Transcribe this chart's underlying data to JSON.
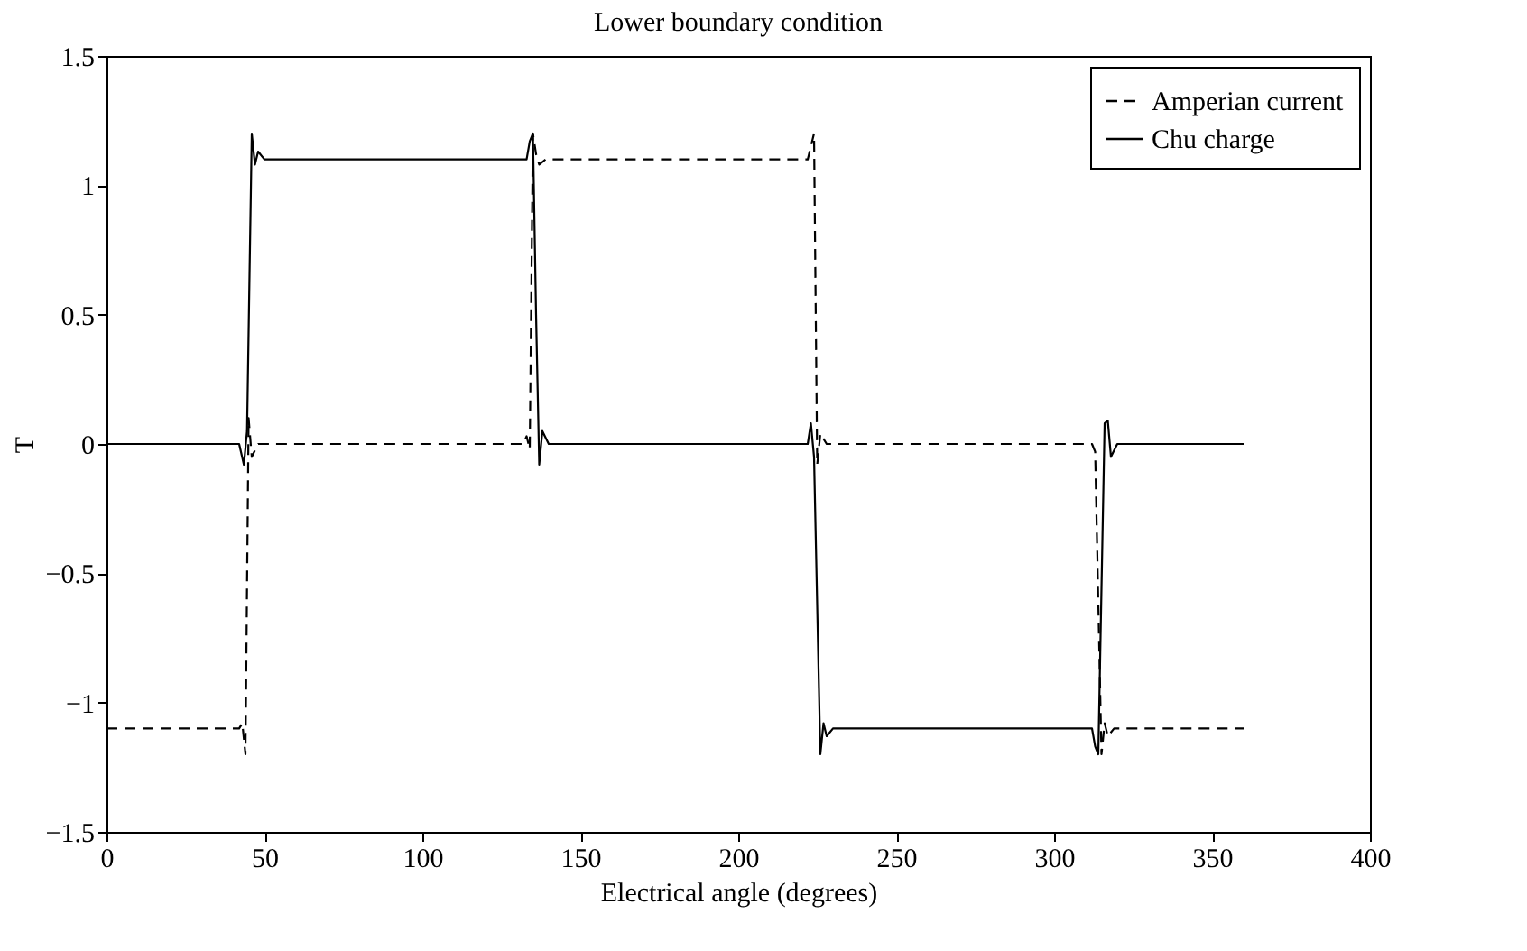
{
  "chart_data": {
    "type": "line",
    "title": "Lower boundary condition",
    "xlabel": "Electrical angle (degrees)",
    "ylabel": "T",
    "xlim": [
      0,
      400
    ],
    "xticks": [
      0,
      50,
      100,
      150,
      200,
      250,
      300,
      350,
      400
    ],
    "ylim": [
      -1.5,
      1.5
    ],
    "yticks": [
      -1.5,
      -1,
      -0.5,
      0,
      0.5,
      1,
      1.5
    ],
    "grid": false,
    "legend": "top right",
    "marker": "none",
    "series": [
      {
        "name": "Amperian current",
        "color": "#000000",
        "line_style": "dashed",
        "x": [
          0,
          42,
          43,
          44,
          45,
          46,
          48,
          132,
          133,
          134,
          135,
          136,
          137,
          139,
          222,
          224,
          225,
          226,
          228,
          312,
          313,
          315,
          316,
          317,
          319,
          360
        ],
        "values": [
          -1.1,
          -1.1,
          -1.08,
          -1.2,
          0.1,
          -0.05,
          0,
          0,
          0.03,
          -0.02,
          1.2,
          1.12,
          1.08,
          1.1,
          1.1,
          1.2,
          -0.08,
          0.04,
          0,
          0,
          -0.03,
          -1.2,
          -1.08,
          -1.13,
          -1.1,
          -1.1
        ]
      },
      {
        "name": "Chu charge",
        "color": "#000000",
        "line_style": "solid",
        "x": [
          0,
          42,
          43.5,
          44.5,
          46,
          47,
          48,
          50,
          133,
          134,
          135,
          136,
          137,
          138,
          140,
          222,
          223,
          224,
          226,
          227,
          228,
          230,
          312,
          313,
          314,
          316,
          317,
          318,
          320,
          360
        ],
        "values": [
          0,
          0,
          -0.08,
          0.05,
          1.2,
          1.08,
          1.13,
          1.1,
          1.1,
          1.17,
          1.2,
          0.5,
          -0.08,
          0.05,
          0,
          0,
          0.08,
          -0.05,
          -1.2,
          -1.08,
          -1.13,
          -1.1,
          -1.1,
          -1.17,
          -1.2,
          0.08,
          0.09,
          -0.05,
          0,
          0
        ]
      }
    ]
  }
}
